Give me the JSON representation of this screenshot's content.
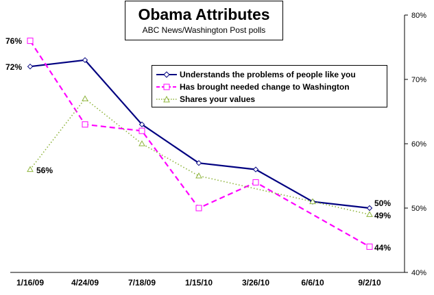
{
  "chart_data": {
    "type": "line",
    "title": "Obama Attributes",
    "subtitle": "ABC News/Washington Post polls",
    "categories": [
      "1/16/09",
      "4/24/09",
      "7/18/09",
      "1/15/10",
      "3/26/10",
      "6/6/10",
      "9/2/10"
    ],
    "ylim": [
      40,
      80
    ],
    "yticks": [
      "40%",
      "50%",
      "60%",
      "70%",
      "80%"
    ],
    "legend_position": "top-right",
    "series": [
      {
        "name": "Understands the problems of people like you",
        "values": [
          72,
          73,
          63,
          57,
          56,
          51,
          50
        ],
        "color": "#000080",
        "style": "solid",
        "marker": "diamond",
        "start_label": "72%",
        "end_label": "50%"
      },
      {
        "name": "Has brought needed change to Washington",
        "values": [
          76,
          63,
          62,
          50,
          54,
          null,
          44
        ],
        "color": "#FF00FF",
        "style": "dashed",
        "marker": "square",
        "start_label": "76%",
        "end_label": "44%"
      },
      {
        "name": "Shares your values",
        "values": [
          56,
          67,
          60,
          55,
          null,
          51,
          49
        ],
        "color": "#8DB33A",
        "style": "dotted",
        "marker": "triangle",
        "start_label": "56%",
        "end_label": "49%"
      }
    ]
  }
}
